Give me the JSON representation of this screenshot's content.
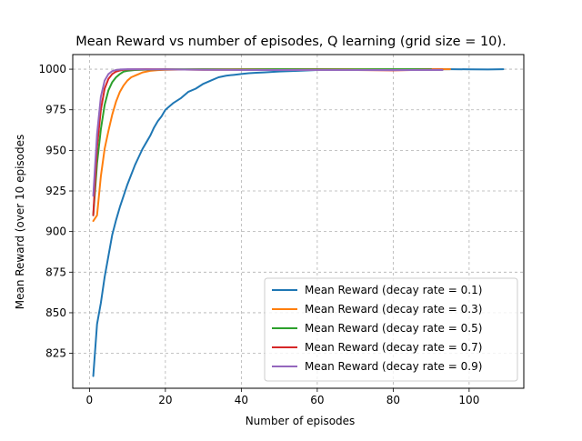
{
  "chart_data": {
    "type": "line",
    "title": "Mean Reward vs number of episodes, Q learning (grid size = 10).",
    "xlabel": "Number of episodes",
    "ylabel": "Mean Reward (over 10 episodes",
    "xlim": [
      -4.4,
      114.4
    ],
    "ylim": [
      803.5,
      1009
    ],
    "xticks": [
      0,
      20,
      40,
      60,
      80,
      100
    ],
    "yticks": [
      825,
      850,
      875,
      900,
      925,
      950,
      975,
      1000
    ],
    "grid": true,
    "legend_position": "lower-right",
    "series": [
      {
        "name": "Mean Reward (decay rate = 0.1)",
        "color": "#1f77b4",
        "x": [
          1,
          2,
          3,
          4,
          5,
          6,
          7,
          8,
          9,
          10,
          11,
          12,
          13,
          14,
          15,
          16,
          17,
          18,
          19,
          20,
          22,
          24,
          26,
          28,
          30,
          32,
          34,
          36,
          38,
          40,
          42,
          44,
          46,
          48,
          50,
          55,
          60,
          65,
          70,
          75,
          80,
          85,
          90,
          95,
          100,
          105,
          109
        ],
        "y": [
          811,
          843,
          856,
          872,
          885,
          898,
          907,
          915,
          922,
          929,
          935,
          941,
          946,
          951,
          955,
          959,
          964,
          968,
          971,
          975,
          979,
          982,
          986,
          988,
          991,
          993,
          995,
          996,
          996.5,
          997,
          997.5,
          997.8,
          998,
          998.3,
          998.6,
          999,
          999.5,
          999.6,
          999.7,
          999.8,
          999.8,
          999.9,
          999.9,
          1000,
          999.9,
          999.8,
          1000
        ]
      },
      {
        "name": "Mean Reward (decay rate = 0.3)",
        "color": "#ff7f0e",
        "x": [
          1,
          2,
          3,
          4,
          5,
          6,
          7,
          8,
          9,
          10,
          11,
          12,
          13,
          14,
          15,
          16,
          18,
          20,
          25,
          30,
          40,
          50,
          60,
          70,
          80,
          90,
          95
        ],
        "y": [
          906.5,
          910,
          934,
          951,
          962,
          972,
          980,
          986,
          990,
          993,
          995,
          996,
          997,
          998,
          998.5,
          999,
          999.4,
          999.6,
          999.8,
          999.8,
          999.9,
          1000,
          999.9,
          1000,
          999.9,
          1000,
          1000
        ]
      },
      {
        "name": "Mean Reward (decay rate = 0.5)",
        "color": "#2ca02c",
        "x": [
          1,
          2,
          3,
          4,
          5,
          6,
          7,
          8,
          9,
          10,
          12,
          15,
          20,
          30,
          40,
          50,
          60,
          70,
          80,
          90
        ],
        "y": [
          910,
          942,
          963,
          978,
          987,
          992,
          995,
          997,
          998.5,
          999,
          999.5,
          999.7,
          999.9,
          1000,
          999.9,
          1000,
          1000,
          999.9,
          1000,
          1000
        ]
      },
      {
        "name": "Mean Reward (decay rate = 0.7)",
        "color": "#d62728",
        "x": [
          1,
          2,
          3,
          4,
          5,
          6,
          7,
          8,
          9,
          10,
          12,
          15,
          20,
          30,
          40,
          50,
          60,
          70,
          80,
          85,
          90,
          93
        ],
        "y": [
          910,
          952,
          975,
          988,
          994,
          997,
          998.5,
          999.2,
          999.6,
          999.8,
          999.9,
          1000,
          999.9,
          999.6,
          999.6,
          999.5,
          999.6,
          999.5,
          999.3,
          999.5,
          999.6,
          999.6
        ]
      },
      {
        "name": "Mean Reward (decay rate = 0.9)",
        "color": "#9467bd",
        "x": [
          1,
          2,
          3,
          4,
          5,
          6,
          7,
          8,
          10,
          12,
          15,
          20,
          30,
          40,
          50,
          60,
          70,
          80,
          85,
          90,
          93
        ],
        "y": [
          922,
          960,
          983,
          993,
          997,
          998.8,
          999.5,
          999.8,
          1000,
          1000,
          999.9,
          999.9,
          999.6,
          999.5,
          999.5,
          999.5,
          999.5,
          999.5,
          999.5,
          999.5,
          999.5
        ]
      }
    ]
  }
}
